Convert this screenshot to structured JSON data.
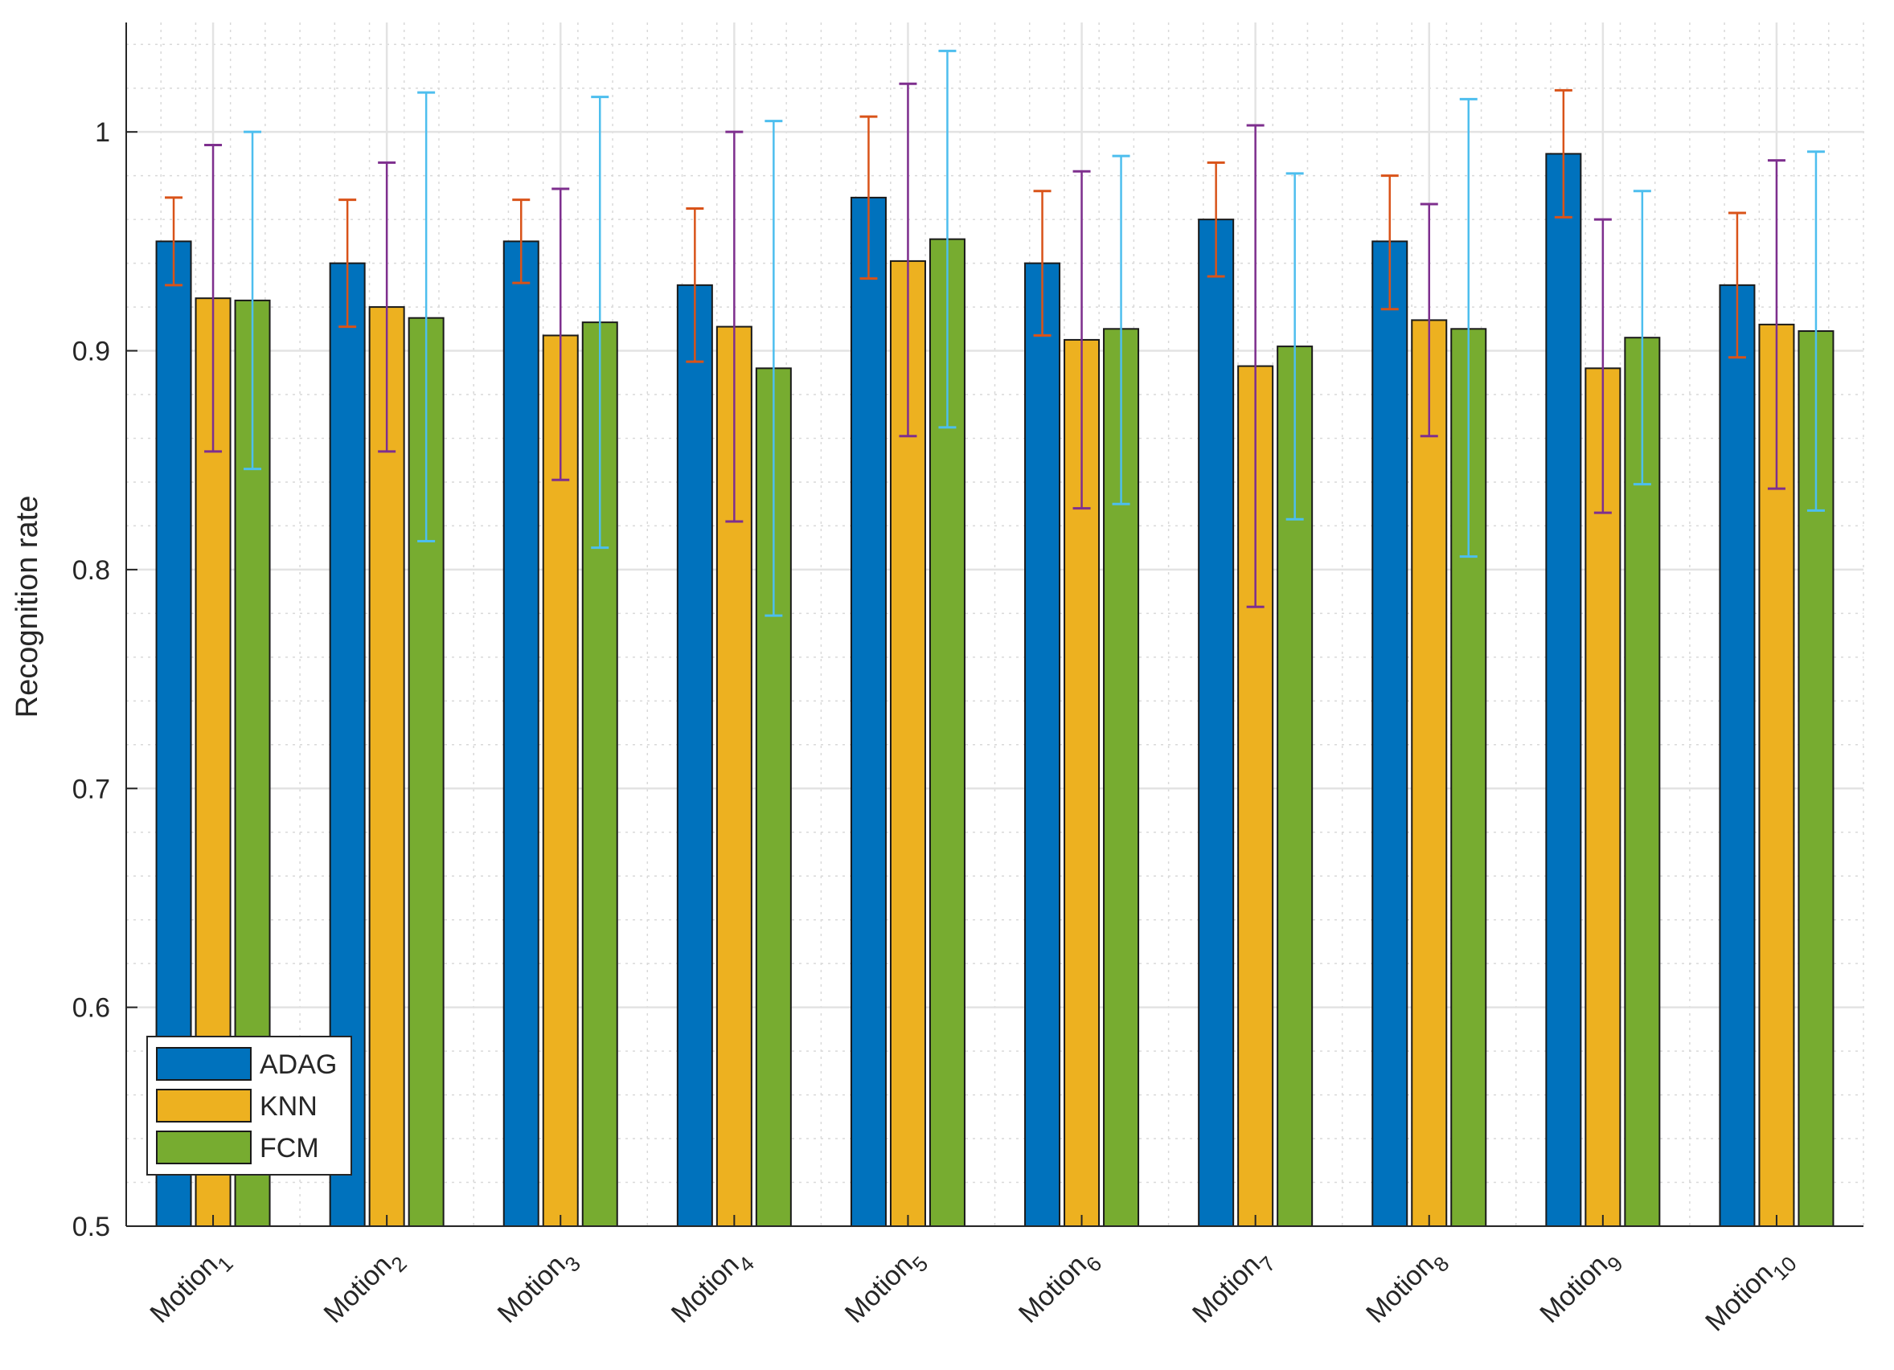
{
  "chart_data": {
    "type": "bar",
    "title": "",
    "xlabel": "",
    "ylabel": "Recognition rate",
    "ylim": [
      0.5,
      1.05
    ],
    "yticks": [
      0.5,
      0.6,
      0.7,
      0.8,
      0.9,
      1
    ],
    "ytick_labels": [
      "0.5",
      "0.6",
      "0.7",
      "0.8",
      "0.9",
      "1"
    ],
    "grid": true,
    "minor_grid": true,
    "legend_position": "bottom-left",
    "categories": [
      {
        "base": "Motion",
        "sub": "1"
      },
      {
        "base": "Motion",
        "sub": "2"
      },
      {
        "base": "Motion",
        "sub": "3"
      },
      {
        "base": "Motion",
        "sub": "4"
      },
      {
        "base": "Motion",
        "sub": "5"
      },
      {
        "base": "Motion",
        "sub": "6"
      },
      {
        "base": "Motion",
        "sub": "7"
      },
      {
        "base": "Motion",
        "sub": "8"
      },
      {
        "base": "Motion",
        "sub": "9"
      },
      {
        "base": "Motion",
        "sub": "10"
      }
    ],
    "series": [
      {
        "name": "ADAG",
        "color": "#0072BD",
        "error_color": "#D95319",
        "values": [
          0.95,
          0.94,
          0.95,
          0.93,
          0.97,
          0.94,
          0.96,
          0.95,
          0.99,
          0.93
        ],
        "err_low": [
          0.93,
          0.911,
          0.931,
          0.895,
          0.933,
          0.907,
          0.934,
          0.919,
          0.961,
          0.897
        ],
        "err_high": [
          0.97,
          0.969,
          0.969,
          0.965,
          1.007,
          0.973,
          0.986,
          0.98,
          1.019,
          0.963
        ]
      },
      {
        "name": "KNN",
        "color": "#EDB120",
        "error_color": "#7E2F8E",
        "values": [
          0.924,
          0.92,
          0.907,
          0.911,
          0.941,
          0.905,
          0.893,
          0.914,
          0.892,
          0.912
        ],
        "err_low": [
          0.854,
          0.854,
          0.841,
          0.822,
          0.861,
          0.828,
          0.783,
          0.861,
          0.826,
          0.837
        ],
        "err_high": [
          0.994,
          0.986,
          0.974,
          1.0,
          1.022,
          0.982,
          1.003,
          0.967,
          0.96,
          0.987
        ]
      },
      {
        "name": "FCM",
        "color": "#77AC30",
        "error_color": "#4DBEEE",
        "values": [
          0.923,
          0.915,
          0.913,
          0.892,
          0.951,
          0.91,
          0.902,
          0.91,
          0.906,
          0.909
        ],
        "err_low": [
          0.846,
          0.813,
          0.81,
          0.779,
          0.865,
          0.83,
          0.823,
          0.806,
          0.839,
          0.827
        ],
        "err_high": [
          1.0,
          1.018,
          1.016,
          1.005,
          1.037,
          0.989,
          0.981,
          1.015,
          0.973,
          0.991
        ]
      }
    ]
  }
}
